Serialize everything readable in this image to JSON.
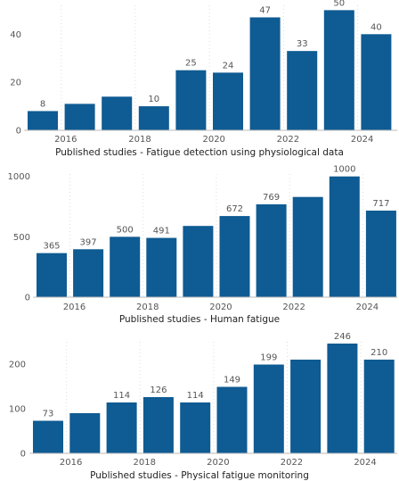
{
  "chart_data": [
    {
      "type": "bar",
      "title": "Published studies - Fatigue detection using physiological data",
      "color": "#0f5b93",
      "x": [
        2015,
        2016,
        2017,
        2018,
        2019,
        2020,
        2021,
        2022,
        2023,
        2024
      ],
      "values": [
        8,
        11,
        14,
        10,
        25,
        24,
        47,
        33,
        50,
        40
      ],
      "data_labels": [
        "8",
        "",
        "",
        "10",
        "25",
        "24",
        "47",
        "33",
        "50",
        "40"
      ],
      "x_ticks": [
        "2016",
        "2018",
        "2020",
        "2022",
        "2024"
      ],
      "y_ticks": [
        0,
        20,
        40
      ],
      "ylim": [
        0,
        52
      ],
      "grid": "vertical dotted"
    },
    {
      "type": "bar",
      "title": "Published studies - Human fatigue",
      "color": "#0f5b93",
      "x": [
        2015,
        2016,
        2017,
        2018,
        2019,
        2020,
        2021,
        2022,
        2023,
        2024
      ],
      "values": [
        365,
        397,
        500,
        491,
        590,
        672,
        769,
        830,
        1000,
        717
      ],
      "data_labels": [
        "365",
        "397",
        "500",
        "491",
        "",
        "672",
        "769",
        "",
        "1000",
        "717"
      ],
      "x_ticks": [
        "2016",
        "2018",
        "2020",
        "2022",
        "2024"
      ],
      "y_ticks": [
        0,
        500,
        1000
      ],
      "ylim": [
        0,
        1020
      ],
      "grid": "vertical dotted"
    },
    {
      "type": "bar",
      "title": "Published studies - Physical fatigue monitoring",
      "color": "#0f5b93",
      "x": [
        2015,
        2016,
        2017,
        2018,
        2019,
        2020,
        2021,
        2022,
        2023,
        2024
      ],
      "values": [
        73,
        90,
        114,
        126,
        114,
        149,
        199,
        210,
        246,
        210
      ],
      "data_labels": [
        "73",
        "",
        "114",
        "126",
        "114",
        "149",
        "199",
        "",
        "246",
        "210"
      ],
      "x_ticks": [
        "2016",
        "2018",
        "2020",
        "2022",
        "2024"
      ],
      "y_ticks": [
        0,
        100,
        200
      ],
      "ylim": [
        0,
        250
      ],
      "grid": "vertical dotted"
    }
  ]
}
